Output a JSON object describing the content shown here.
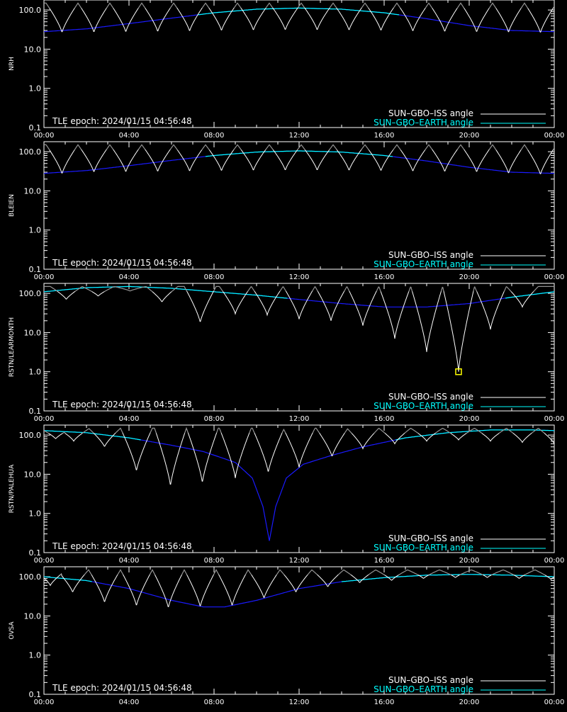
{
  "chart_data": [
    {
      "type": "line",
      "station": "NRH",
      "epoch_label": "TLE epoch: 2024/01/15 04:56:48",
      "x_ticks": [
        "00:00",
        "04:00",
        "08:00",
        "12:00",
        "16:00",
        "20:00",
        "00:00"
      ],
      "y_ticks": [
        "0.1",
        "1.0",
        "10.0",
        "100.0"
      ],
      "ylim": [
        0.1,
        180
      ],
      "y_scale": "log",
      "xlim_hours": [
        0,
        24
      ],
      "legend_position": "bottom-right",
      "series": [
        {
          "name": "SUN–GBO–ISS angle",
          "color": "#ffffff",
          "kind": "iss",
          "period_hours": 1.5,
          "phase_hours": 0.85,
          "min_deg": 25,
          "max_deg": 150,
          "shape": 0.8
        },
        {
          "name": "SUN–GBO–EARTH angle",
          "color": "#00ffff",
          "kind": "earth",
          "x": [
            0,
            2,
            4,
            6,
            8,
            10,
            12,
            14,
            16,
            18,
            20,
            22,
            24
          ],
          "y": [
            28,
            33,
            45,
            62,
            85,
            105,
            112,
            105,
            85,
            60,
            40,
            30,
            28
          ]
        }
      ]
    },
    {
      "type": "line",
      "station": "BLEIEN",
      "epoch_label": "TLE epoch: 2024/01/15 04:56:48",
      "x_ticks": [
        "00:00",
        "04:00",
        "08:00",
        "12:00",
        "16:00",
        "20:00",
        "00:00"
      ],
      "y_ticks": [
        "0.1",
        "1.0",
        "10.0",
        "100.0"
      ],
      "ylim": [
        0.1,
        180
      ],
      "y_scale": "log",
      "xlim_hours": [
        0,
        24
      ],
      "legend_position": "bottom-right",
      "series": [
        {
          "name": "SUN–GBO–ISS angle",
          "color": "#ffffff",
          "kind": "iss",
          "period_hours": 1.5,
          "phase_hours": 0.85,
          "min_deg": 28,
          "max_deg": 150,
          "shape": 0.8
        },
        {
          "name": "SUN–GBO–EARTH angle",
          "color": "#00ffff",
          "kind": "earth",
          "x": [
            0,
            2,
            4,
            6,
            8,
            10,
            12,
            14,
            16,
            18,
            20,
            22,
            24
          ],
          "y": [
            28,
            33,
            44,
            60,
            80,
            98,
            105,
            98,
            80,
            58,
            40,
            30,
            28
          ]
        }
      ]
    },
    {
      "type": "line",
      "station": "RSTN/LEARMONTH",
      "epoch_label": "TLE epoch: 2024/01/15 04:56:48",
      "x_ticks": [
        "00:00",
        "04:00",
        "08:00",
        "12:00",
        "16:00",
        "20:00",
        "00:00"
      ],
      "y_ticks": [
        "0.1",
        "1.0",
        "10.0",
        "100.0"
      ],
      "ylim": [
        0.1,
        180
      ],
      "y_scale": "log",
      "xlim_hours": [
        0,
        24
      ],
      "legend_position": "bottom-right",
      "marker": {
        "x_hours": 19.5,
        "y": 1.0,
        "color": "#ffff00"
      },
      "series": [
        {
          "name": "SUN–GBO–ISS angle",
          "color": "#ffffff",
          "kind": "iss",
          "period_hours": 1.5,
          "phase_hours": 1.05,
          "min_deg": 40,
          "max_deg": 150,
          "shape": 0.8,
          "dips": [
            [
              1.05,
              70
            ],
            [
              2.55,
              85
            ],
            [
              4.05,
              115
            ],
            [
              5.55,
              60
            ],
            [
              7.35,
              18
            ],
            [
              9.0,
              30
            ],
            [
              10.5,
              28
            ],
            [
              12.0,
              22
            ],
            [
              13.5,
              20
            ],
            [
              15.0,
              15
            ],
            [
              16.5,
              7
            ],
            [
              18.0,
              3.2
            ],
            [
              19.5,
              1.0
            ],
            [
              21.0,
              12
            ],
            [
              22.5,
              45
            ]
          ]
        },
        {
          "name": "SUN–GBO–EARTH angle",
          "color": "#00ffff",
          "kind": "earth",
          "x": [
            0,
            2,
            4,
            6,
            8,
            10,
            12,
            14,
            16,
            18,
            20,
            22,
            24
          ],
          "y": [
            110,
            140,
            150,
            135,
            110,
            90,
            70,
            55,
            45,
            45,
            55,
            80,
            110
          ]
        }
      ]
    },
    {
      "type": "line",
      "station": "RSTN/PALEHUA",
      "epoch_label": "TLE epoch: 2024/01/15 04:56:48",
      "x_ticks": [
        "00:00",
        "04:00",
        "08:00",
        "12:00",
        "16:00",
        "20:00",
        "00:00"
      ],
      "y_ticks": [
        "0.1",
        "1.0",
        "10.0",
        "100.0"
      ],
      "ylim": [
        0.1,
        180
      ],
      "y_scale": "log",
      "xlim_hours": [
        0,
        24
      ],
      "legend_position": "bottom-right",
      "series": [
        {
          "name": "SUN–GBO–ISS angle",
          "color": "#ffffff",
          "kind": "iss",
          "period_hours": 1.5,
          "phase_hours": 0.55,
          "min_deg": 60,
          "max_deg": 150,
          "shape": 0.8,
          "dips": [
            [
              0.55,
              80
            ],
            [
              1.4,
              70
            ],
            [
              2.85,
              50
            ],
            [
              4.35,
              12
            ],
            [
              5.95,
              5
            ],
            [
              7.45,
              6
            ],
            [
              9.0,
              8
            ],
            [
              10.55,
              11
            ],
            [
              12.0,
              15
            ],
            [
              13.55,
              28
            ],
            [
              15.0,
              45
            ],
            [
              16.5,
              60
            ],
            [
              18.0,
              70
            ],
            [
              19.5,
              75
            ],
            [
              21.0,
              70
            ],
            [
              22.5,
              65
            ],
            [
              24.0,
              60
            ]
          ]
        },
        {
          "name": "SUN–GBO–EARTH angle",
          "color": "#00ffff",
          "kind": "earth",
          "x": [
            0,
            2,
            4,
            6,
            7.5,
            9,
            9.8,
            10.3,
            10.6,
            10.9,
            11.4,
            12.2,
            13.5,
            15,
            17,
            19,
            21,
            23,
            24
          ],
          "y": [
            130,
            115,
            85,
            55,
            38,
            20,
            8,
            1.5,
            0.2,
            1.5,
            8,
            18,
            30,
            50,
            85,
            115,
            135,
            135,
            130
          ]
        }
      ]
    },
    {
      "type": "line",
      "station": "OVSA",
      "epoch_label": "TLE epoch: 2024/01/15 04:56:48",
      "x_ticks": [
        "00:00",
        "04:00",
        "08:00",
        "12:00",
        "16:00",
        "20:00",
        "00:00"
      ],
      "y_ticks": [
        "0.1",
        "1.0",
        "10.0",
        "100.0"
      ],
      "ylim": [
        0.1,
        180
      ],
      "y_scale": "log",
      "xlim_hours": [
        0,
        24
      ],
      "legend_position": "bottom-right",
      "series": [
        {
          "name": "SUN–GBO–ISS angle",
          "color": "#ffffff",
          "kind": "iss",
          "period_hours": 1.5,
          "phase_hours": 0.3,
          "min_deg": 20,
          "max_deg": 150,
          "shape": 0.8,
          "dips": [
            [
              0.3,
              60
            ],
            [
              1.35,
              40
            ],
            [
              2.85,
              22
            ],
            [
              4.35,
              18
            ],
            [
              5.85,
              16
            ],
            [
              7.35,
              17
            ],
            [
              8.85,
              18
            ],
            [
              10.35,
              28
            ],
            [
              11.85,
              40
            ],
            [
              13.35,
              55
            ],
            [
              14.85,
              70
            ],
            [
              16.35,
              80
            ],
            [
              17.85,
              90
            ],
            [
              19.35,
              95
            ],
            [
              20.85,
              95
            ],
            [
              22.35,
              90
            ],
            [
              23.85,
              85
            ]
          ]
        },
        {
          "name": "SUN–GBO–EARTH angle",
          "color": "#00ffff",
          "kind": "earth",
          "x": [
            0,
            2,
            4,
            6,
            7.5,
            8.5,
            10,
            12,
            14,
            16,
            18,
            20,
            22,
            24
          ],
          "y": [
            100,
            80,
            50,
            25,
            17,
            17,
            25,
            50,
            75,
            95,
            110,
            115,
            110,
            100
          ]
        }
      ]
    }
  ]
}
